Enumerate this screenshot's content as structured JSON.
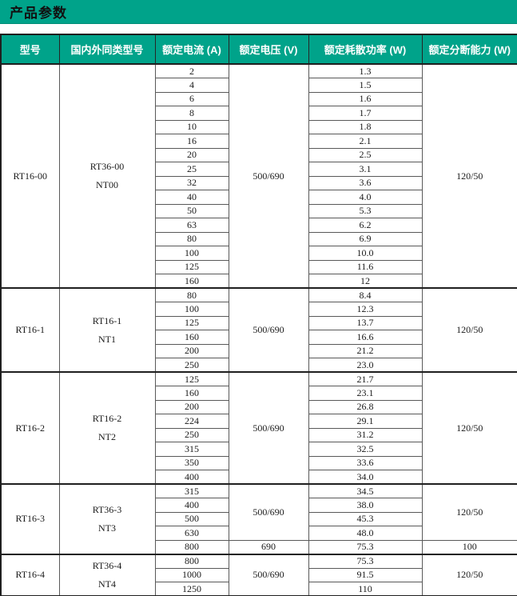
{
  "page": {
    "title": "产品参数"
  },
  "colors": {
    "accent_teal": "#00A38A",
    "header_text": "#FFFFFF",
    "title_text": "#111111",
    "grid_line": "#595959",
    "outer_border": "#1F1F1F"
  },
  "table": {
    "headers": [
      "型号",
      "国内外同类型号",
      "额定电流 (A)",
      "额定电压 (V)",
      "额定耗散功率 (W)",
      "额定分断能力 (W)"
    ],
    "groups": [
      {
        "model": "RT16-00",
        "equivalent": [
          "RT36-00",
          "NT00"
        ],
        "segments": [
          {
            "voltage": "500/690",
            "breaking": "120/50",
            "rows": [
              {
                "current": "2",
                "power": "1.3"
              },
              {
                "current": "4",
                "power": "1.5"
              },
              {
                "current": "6",
                "power": "1.6"
              },
              {
                "current": "8",
                "power": "1.7"
              },
              {
                "current": "10",
                "power": "1.8"
              },
              {
                "current": "16",
                "power": "2.1"
              },
              {
                "current": "20",
                "power": "2.5"
              },
              {
                "current": "25",
                "power": "3.1"
              },
              {
                "current": "32",
                "power": "3.6"
              },
              {
                "current": "40",
                "power": "4.0"
              },
              {
                "current": "50",
                "power": "5.3"
              },
              {
                "current": "63",
                "power": "6.2"
              },
              {
                "current": "80",
                "power": "6.9"
              },
              {
                "current": "100",
                "power": "10.0"
              },
              {
                "current": "125",
                "power": "11.6"
              },
              {
                "current": "160",
                "power": "12"
              }
            ]
          }
        ]
      },
      {
        "model": "RT16-1",
        "equivalent": [
          "RT16-1",
          "NT1"
        ],
        "segments": [
          {
            "voltage": "500/690",
            "breaking": "120/50",
            "rows": [
              {
                "current": "80",
                "power": "8.4"
              },
              {
                "current": "100",
                "power": "12.3"
              },
              {
                "current": "125",
                "power": "13.7"
              },
              {
                "current": "160",
                "power": "16.6"
              },
              {
                "current": "200",
                "power": "21.2"
              },
              {
                "current": "250",
                "power": "23.0"
              }
            ]
          }
        ]
      },
      {
        "model": "RT16-2",
        "equivalent": [
          "RT16-2",
          "NT2"
        ],
        "segments": [
          {
            "voltage": "500/690",
            "breaking": "120/50",
            "rows": [
              {
                "current": "125",
                "power": "21.7"
              },
              {
                "current": "160",
                "power": "23.1"
              },
              {
                "current": "200",
                "power": "26.8"
              },
              {
                "current": "224",
                "power": "29.1"
              },
              {
                "current": "250",
                "power": "31.2"
              },
              {
                "current": "315",
                "power": "32.5"
              },
              {
                "current": "350",
                "power": "33.6"
              },
              {
                "current": "400",
                "power": "34.0"
              }
            ]
          }
        ]
      },
      {
        "model": "RT16-3",
        "equivalent": [
          "RT36-3",
          "NT3"
        ],
        "segments": [
          {
            "voltage": "500/690",
            "breaking": "120/50",
            "rows": [
              {
                "current": "315",
                "power": "34.5"
              },
              {
                "current": "400",
                "power": "38.0"
              },
              {
                "current": "500",
                "power": "45.3"
              },
              {
                "current": "630",
                "power": "48.0"
              }
            ]
          },
          {
            "voltage": "690",
            "breaking": "100",
            "rows": [
              {
                "current": "800",
                "power": "75.3"
              }
            ]
          }
        ]
      },
      {
        "model": "RT16-4",
        "equivalent": [
          "RT36-4",
          "NT4"
        ],
        "segments": [
          {
            "voltage": "500/690",
            "breaking": "120/50",
            "rows": [
              {
                "current": "800",
                "power": "75.3"
              },
              {
                "current": "1000",
                "power": "91.5"
              },
              {
                "current": "1250",
                "power": "110"
              }
            ]
          }
        ]
      }
    ]
  }
}
